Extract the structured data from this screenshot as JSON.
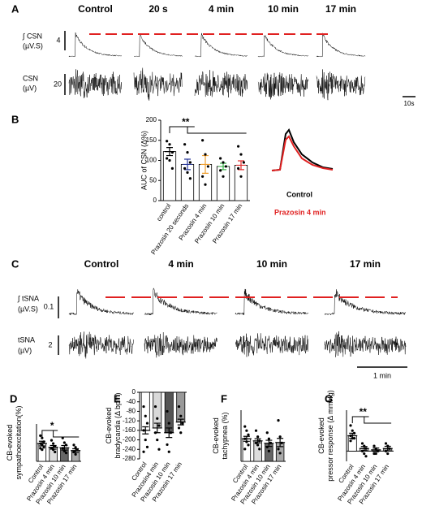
{
  "panel_a": {
    "letter": "A",
    "headers": [
      "Control",
      "20 s",
      "4 min",
      "10 min",
      "17 min"
    ],
    "row_labels": [
      [
        "∫ CSN",
        "(µV.S)"
      ],
      [
        "CSN",
        "(µV)"
      ]
    ],
    "scales": [
      "4",
      "20"
    ],
    "time_scale": "10s"
  },
  "inset": {
    "labels": [
      "Control",
      "Prazosin 4 min"
    ],
    "colors": [
      "#000000",
      "#e02020"
    ]
  },
  "panel_c": {
    "letter": "C",
    "headers": [
      "Control",
      "4 min",
      "10 min",
      "17 min"
    ],
    "row_labels": [
      [
        "∫ tSNA",
        "(µV.S)"
      ],
      [
        "tSNA",
        "(µV)"
      ]
    ],
    "scales": [
      "0.1",
      "2"
    ],
    "time_scale": "1 min"
  },
  "chart_data": [
    {
      "type": "bar",
      "letter": "B",
      "ylabel": [
        "AUC of CSN (Δ%)"
      ],
      "categories": [
        "control",
        "Prazosin 20 seconds",
        "Prazosin 4 min",
        "Prazosin 10 min",
        "Prazosin 17 min"
      ],
      "values": [
        122,
        90,
        90,
        85,
        88
      ],
      "errors": [
        10,
        13,
        22,
        8,
        11
      ],
      "points": [
        [
          148,
          140,
          120,
          105,
          100,
          80
        ],
        [
          140,
          120,
          95,
          80,
          70,
          55
        ],
        [
          150,
          115,
          85,
          60,
          40
        ],
        [
          105,
          95,
          85,
          75,
          60
        ],
        [
          135,
          115,
          95,
          80,
          60
        ]
      ],
      "colors": [
        "#ffffff",
        "#ffffff",
        "#ffffff",
        "#ffffff",
        "#ffffff"
      ],
      "error_colors": [
        "#000000",
        "#2b3a9c",
        "#f0a030",
        "#3cb44b",
        "#e03030"
      ],
      "ylim": [
        0,
        200
      ],
      "yticks": [
        0,
        50,
        100,
        150,
        200
      ],
      "significance": "**"
    },
    {
      "type": "bar",
      "letter": "D",
      "ylabel": [
        "CB-evoked",
        "sympathoexcitation(%)"
      ],
      "categories": [
        "Control",
        "Prazosin 4 min",
        "Prazosin 10 min",
        "Prazosin 17 min"
      ],
      "values": [
        38,
        30,
        29,
        23
      ],
      "errors": [
        5,
        4,
        5,
        4
      ],
      "points": [
        [
          55,
          50,
          42,
          38,
          35,
          30,
          28,
          25
        ],
        [
          45,
          38,
          32,
          28,
          25,
          20
        ],
        [
          50,
          40,
          35,
          28,
          22,
          18
        ],
        [
          35,
          30,
          25,
          20,
          15
        ]
      ],
      "colors": [
        "#ffffff",
        "#dddddd",
        "#666666",
        "#aaaaaa"
      ],
      "ylim": [
        0,
        80
      ],
      "significance": "*"
    },
    {
      "type": "bar",
      "letter": "E",
      "ylabel": [
        "CB-evoked",
        "bradycardia (Δ bpm)"
      ],
      "categories": [
        "Control",
        "Prazosin4 min",
        "Prazosin 10 min",
        "Prazosin 17 min"
      ],
      "values": [
        -160,
        -150,
        -170,
        -125
      ],
      "errors": [
        15,
        20,
        20,
        12
      ],
      "points": [
        [
          -60,
          -100,
          -130,
          -160,
          -200,
          -230,
          -250
        ],
        [
          -60,
          -110,
          -140,
          -170,
          -200,
          -240
        ],
        [
          -80,
          -130,
          -170,
          -220,
          -250
        ],
        [
          -60,
          -100,
          -130,
          -150,
          -170
        ]
      ],
      "colors": [
        "#ffffff",
        "#d9d9d9",
        "#555555",
        "#999999"
      ],
      "ylim": [
        -280,
        0
      ],
      "yticks": [
        0,
        -40,
        -80,
        -120,
        -160,
        -200,
        -240,
        -280
      ]
    },
    {
      "type": "bar",
      "letter": "F",
      "ylabel": [
        "CB-evoked",
        "tachypnea (%)"
      ],
      "categories": [
        "Control",
        "Prazosin 4 min",
        "Prazosin 10 min",
        "Prazosin 17 min"
      ],
      "values": [
        110,
        100,
        88,
        92
      ],
      "errors": [
        12,
        10,
        15,
        20
      ],
      "points": [
        [
          170,
          150,
          130,
          110,
          95,
          80,
          60
        ],
        [
          150,
          120,
          100,
          90,
          80,
          60
        ],
        [
          140,
          110,
          90,
          70,
          50
        ],
        [
          200,
          120,
          90,
          60,
          40
        ]
      ],
      "colors": [
        "#ffffff",
        "#dddddd",
        "#666666",
        "#aaaaaa"
      ],
      "ylim": [
        0,
        250
      ]
    },
    {
      "type": "bar",
      "letter": "G",
      "ylabel": [
        "CB-evoked",
        "pressor response (Δ mmHg)"
      ],
      "categories": [
        "Control",
        "Prazosin 4 min",
        "Prazosin 10 min",
        "Prazosin 17 min"
      ],
      "values": [
        6,
        1,
        0.5,
        1
      ],
      "errors": [
        1,
        0.8,
        0.7,
        0.9
      ],
      "points": [
        [
          10,
          8,
          7,
          6,
          5,
          5,
          4
        ],
        [
          3,
          2,
          1,
          0,
          -1,
          -2
        ],
        [
          2,
          1,
          0,
          -1,
          -1
        ],
        [
          3,
          2,
          1,
          0,
          -1
        ]
      ],
      "colors": [
        "#ffffff",
        "#dddddd",
        "#666666",
        "#aaaaaa"
      ],
      "ylim": [
        -4,
        16
      ],
      "significance": "**"
    }
  ]
}
